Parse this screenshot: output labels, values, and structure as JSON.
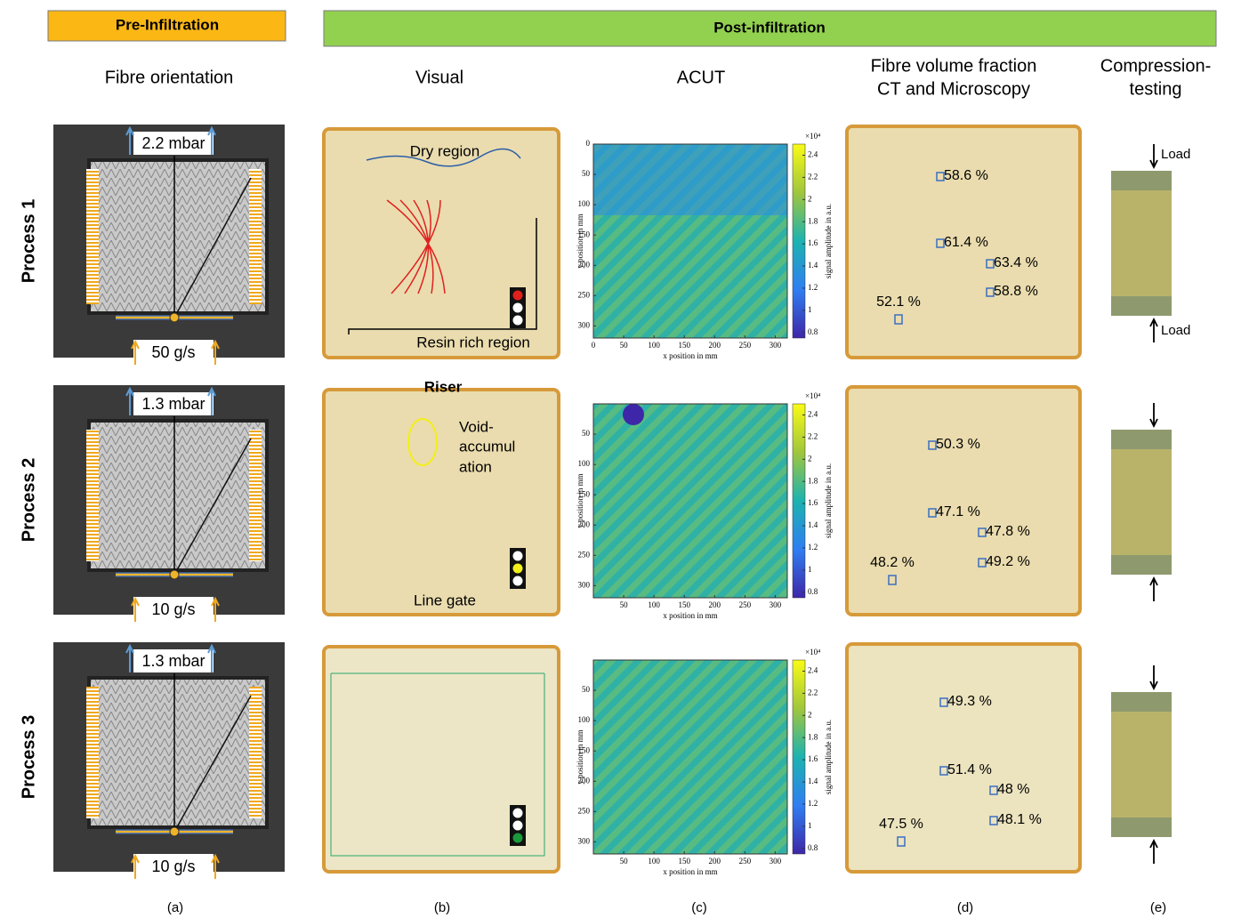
{
  "header": {
    "pre": "Pre-Infiltration",
    "post": "Post-infiltration"
  },
  "columns": [
    {
      "lines": [
        "Fibre orientation"
      ]
    },
    {
      "lines": [
        "Visual"
      ]
    },
    {
      "lines": [
        "ACUT"
      ]
    },
    {
      "lines": [
        "Fibre volume fraction",
        "CT and Microscopy"
      ]
    },
    {
      "lines": [
        "Compression-",
        "testing"
      ]
    }
  ],
  "rows": [
    {
      "label": "Process 1",
      "pressure": "2.2 mbar",
      "flow": "50 g/s",
      "visual_notes": [
        "Dry region",
        "Resin rich region"
      ],
      "fvf": [
        "58.6 %",
        "61.4 %",
        "63.4 %",
        "58.8 %",
        "52.1 %"
      ],
      "load": [
        "Load",
        "Load"
      ]
    },
    {
      "label": "Process 2",
      "pressure": "1.3 mbar",
      "flow": "10 g/s",
      "visual_notes": [
        "Riser",
        "Void-",
        "accumul",
        "ation",
        "Line gate"
      ],
      "fvf": [
        "50.3 %",
        "47.1 %",
        "47.8 %",
        "49.2 %",
        "48.2 %"
      ]
    },
    {
      "label": "Process 3",
      "pressure": "1.3 mbar",
      "flow": "10 g/s",
      "fvf": [
        "49.3 %",
        "51.4 %",
        "48 %",
        "48.1 %",
        "47.5 %"
      ]
    }
  ],
  "acut": {
    "x_label": "x position in mm",
    "y_label": "y position in mm",
    "cbar_label": "signal amplitude in a.u.",
    "cbar_exponent": "×10⁴",
    "xlim": [
      0,
      320
    ],
    "ylim": [
      0,
      320
    ],
    "clim": [
      0.75,
      2.5
    ],
    "plots": [
      {
        "xticks": [
          0,
          50,
          100,
          150,
          200,
          250,
          300
        ],
        "yticks": [
          0,
          50,
          100,
          150,
          200,
          250,
          300
        ],
        "cticks": [
          0.8,
          1,
          1.2,
          1.4,
          1.6,
          1.8,
          2,
          2.2,
          2.4
        ]
      },
      {
        "xticks": [
          50,
          100,
          150,
          200,
          250,
          300
        ],
        "yticks": [
          50,
          100,
          150,
          200,
          250,
          300
        ],
        "cticks": [
          0.8,
          1,
          1.2,
          1.4,
          1.6,
          1.8,
          2,
          2.2,
          2.4
        ]
      },
      {
        "xticks": [
          50,
          100,
          150,
          200,
          250,
          300
        ],
        "yticks": [
          50,
          100,
          150,
          200,
          250,
          300
        ],
        "cticks": [
          0.8,
          1,
          1.2,
          1.4,
          1.6,
          1.8,
          2,
          2.2,
          2.4
        ]
      }
    ]
  },
  "captions": [
    "(a)",
    "(b)",
    "(c)",
    "(d)",
    "(e)"
  ]
}
